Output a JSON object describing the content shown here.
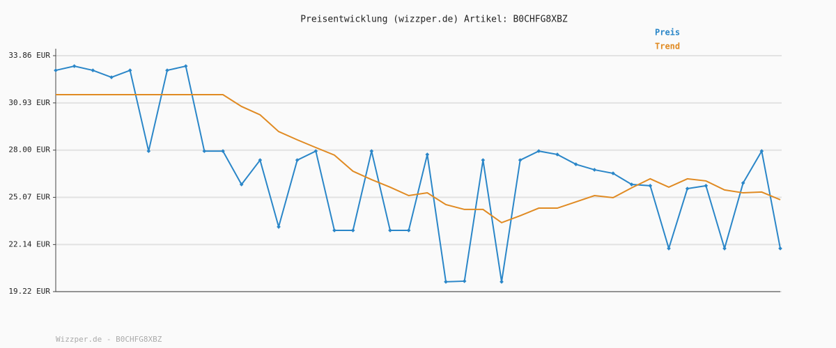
{
  "chart_data": {
    "type": "line",
    "title": "Preisentwicklung (wizzper.de) Artikel: B0CHFG8XBZ",
    "footer": "Wizzper.de - B0CHFG8XBZ",
    "categories": [
      null,
      null,
      null,
      null,
      null,
      null,
      null,
      null,
      null,
      null,
      null,
      null,
      null,
      null,
      null,
      null,
      null,
      null,
      null,
      null,
      null,
      null,
      null,
      null,
      null,
      null,
      null,
      null,
      null,
      null,
      null,
      null,
      null,
      null,
      null,
      null,
      null,
      null,
      null,
      null
    ],
    "series": [
      {
        "name": "Preis",
        "color": "#2a86c8",
        "markers": true,
        "values": [
          32.95,
          33.21,
          32.95,
          32.52,
          32.95,
          27.94,
          32.95,
          33.21,
          27.94,
          27.94,
          25.87,
          27.38,
          23.24,
          27.38,
          27.94,
          23.02,
          23.02,
          27.94,
          23.02,
          23.02,
          27.73,
          19.83,
          19.87,
          27.38,
          19.83,
          27.38,
          27.94,
          27.73,
          27.12,
          26.78,
          26.56,
          25.87,
          25.79,
          21.9,
          25.61,
          25.79,
          21.9,
          25.96,
          27.94,
          21.9
        ]
      },
      {
        "name": "Trend",
        "color": "#e08a22",
        "markers": false,
        "values": [
          31.44,
          31.44,
          31.44,
          31.44,
          31.44,
          31.44,
          31.44,
          31.44,
          31.44,
          31.44,
          30.71,
          30.19,
          29.15,
          28.64,
          28.16,
          27.69,
          26.69,
          26.17,
          25.7,
          25.18,
          25.35,
          24.62,
          24.32,
          24.32,
          23.5,
          23.93,
          24.4,
          24.4,
          24.79,
          25.18,
          25.05,
          25.66,
          26.22,
          25.7,
          26.22,
          26.09,
          25.53,
          25.35,
          25.4,
          24.92
        ]
      }
    ],
    "ylim": [
      19.22,
      33.86
    ],
    "yticks": [
      {
        "value": 19.22,
        "label": "19.22 EUR"
      },
      {
        "value": 22.14,
        "label": "22.14 EUR"
      },
      {
        "value": 25.07,
        "label": "25.07 EUR"
      },
      {
        "value": 28.0,
        "label": "28.00 EUR"
      },
      {
        "value": 30.93,
        "label": "30.93 EUR"
      },
      {
        "value": 33.86,
        "label": "33.86 EUR"
      }
    ],
    "grid": true
  }
}
